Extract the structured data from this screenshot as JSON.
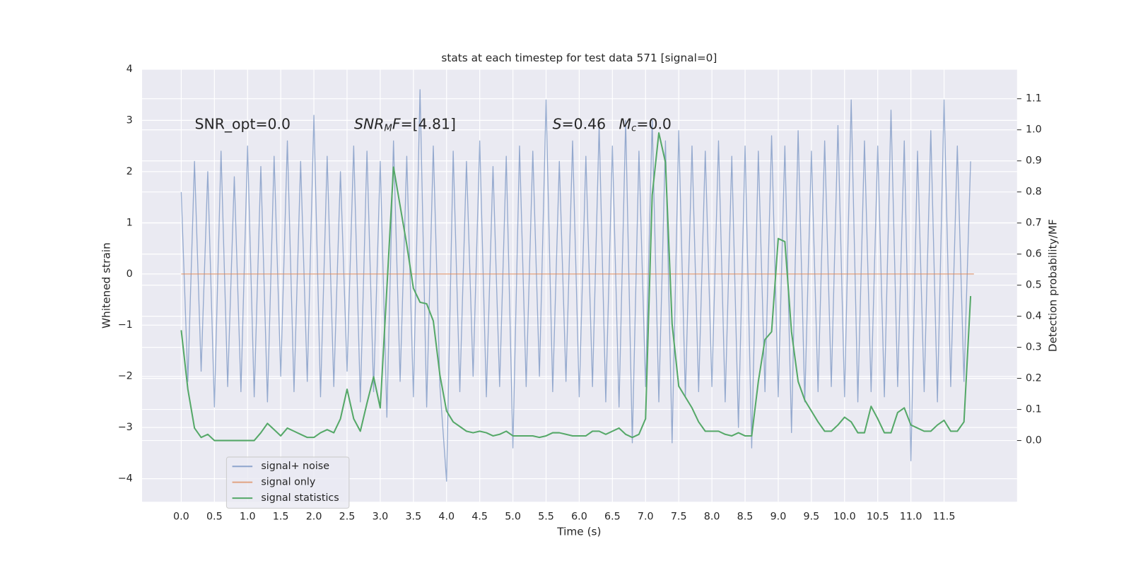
{
  "chart_data": {
    "type": "line",
    "title": "stats at each timestep for test data 571 [signal=0]",
    "x_label": "Time (s)",
    "y_label": "Whitened strain",
    "y2_label": "Detection probability/MF",
    "annotations": [
      [
        {
          "text": "SNR_opt=0.0"
        }
      ],
      [
        {
          "text": "SNR",
          "italic": true
        },
        {
          "text": "M",
          "italic": true,
          "sub": true
        },
        {
          "text": "F",
          "italic": true
        },
        {
          "text": "=[4.81]"
        }
      ],
      [
        {
          "text": "S",
          "italic": true
        },
        {
          "text": "=0.46"
        }
      ],
      [
        {
          "text": "M",
          "italic": true
        },
        {
          "text": "c",
          "italic": true,
          "sub": true
        },
        {
          "text": "=0.0"
        }
      ]
    ],
    "x": [
      0,
      0.1,
      0.2,
      0.3,
      0.4,
      0.5,
      0.6,
      0.7,
      0.8,
      0.9,
      1,
      1.1,
      1.2,
      1.3,
      1.4,
      1.5,
      1.6,
      1.7,
      1.8,
      1.9,
      2,
      2.1,
      2.2,
      2.3,
      2.4,
      2.5,
      2.6,
      2.7,
      2.8,
      2.9,
      3,
      3.1,
      3.2,
      3.3,
      3.4,
      3.5,
      3.6,
      3.7,
      3.8,
      3.9,
      4,
      4.1,
      4.2,
      4.3,
      4.4,
      4.5,
      4.6,
      4.7,
      4.8,
      4.9,
      5,
      5.1,
      5.2,
      5.3,
      5.4,
      5.5,
      5.6,
      5.7,
      5.8,
      5.9,
      6,
      6.1,
      6.2,
      6.3,
      6.4,
      6.5,
      6.6,
      6.7,
      6.8,
      6.9,
      7,
      7.1,
      7.2,
      7.3,
      7.4,
      7.5,
      7.6,
      7.7,
      7.8,
      7.9,
      8,
      8.1,
      8.2,
      8.3,
      8.4,
      8.5,
      8.6,
      8.7,
      8.8,
      8.9,
      9,
      9.1,
      9.2,
      9.3,
      9.4,
      9.5,
      9.6,
      9.7,
      9.8,
      9.9,
      10,
      10.1,
      10.2,
      10.3,
      10.4,
      10.5,
      10.6,
      10.7,
      10.8,
      10.9,
      11,
      11.1,
      11.2,
      11.3,
      11.4,
      11.5,
      11.6,
      11.7,
      11.8,
      11.9
    ],
    "series": [
      {
        "name": "signal+ noise",
        "color": "#4c72b0",
        "opacity": 0.55,
        "values": [
          1.6,
          -2.1,
          2.2,
          -1.9,
          2.0,
          -2.6,
          2.4,
          -2.2,
          1.9,
          -2.3,
          2.5,
          -2.4,
          2.1,
          -2.5,
          2.3,
          -2.0,
          2.6,
          -2.3,
          2.2,
          -2.1,
          3.1,
          -2.4,
          2.3,
          -2.2,
          2.0,
          -1.9,
          2.5,
          -2.5,
          2.4,
          -2.3,
          2.2,
          -2.8,
          2.6,
          -2.1,
          2.3,
          -2.4,
          3.6,
          -2.6,
          2.5,
          -2.2,
          -4.05,
          2.4,
          -2.3,
          2.2,
          -2.0,
          2.6,
          -2.4,
          2.1,
          -2.2,
          2.3,
          -3.4,
          2.5,
          -2.2,
          2.4,
          -2.0,
          3.4,
          -2.3,
          2.2,
          -2.1,
          2.6,
          -2.4,
          2.3,
          -2.2,
          2.9,
          -2.5,
          2.5,
          -2.6,
          3.0,
          -3.3,
          2.4,
          -2.2,
          3.0,
          -2.5,
          2.6,
          -3.3,
          2.8,
          -2.4,
          2.5,
          -2.3,
          2.4,
          -2.2,
          2.6,
          -2.5,
          2.3,
          -3.0,
          2.5,
          -3.4,
          2.4,
          -2.3,
          2.7,
          -2.4,
          2.5,
          -3.1,
          2.8,
          -2.5,
          2.4,
          -2.3,
          2.6,
          -2.2,
          2.9,
          -2.4,
          3.4,
          -2.5,
          2.6,
          -2.3,
          2.5,
          -2.4,
          3.2,
          -2.2,
          2.6,
          -3.65,
          2.4,
          -2.3,
          2.8,
          -2.5,
          3.4,
          -2.2,
          2.5,
          -2.1,
          2.2
        ]
      },
      {
        "name": "signal only",
        "color": "#dd8452",
        "opacity": 0.7,
        "x": [
          0,
          11.95
        ],
        "values": [
          0,
          0
        ]
      },
      {
        "name": "signal statistics",
        "color": "#55a868",
        "opacity": 1,
        "axis": "y2",
        "values": [
          0.355,
          0.165,
          0.04,
          0.01,
          0.02,
          0,
          0,
          0,
          0,
          0,
          0,
          0,
          0.025,
          0.055,
          0.035,
          0.015,
          0.04,
          0.03,
          0.02,
          0.01,
          0.01,
          0.025,
          0.035,
          0.025,
          0.07,
          0.165,
          0.07,
          0.03,
          0.12,
          0.205,
          0.105,
          0.49,
          0.88,
          0.755,
          0.63,
          0.49,
          0.445,
          0.44,
          0.385,
          0.21,
          0.095,
          0.06,
          0.045,
          0.03,
          0.025,
          0.03,
          0.025,
          0.015,
          0.02,
          0.03,
          0.015,
          0.015,
          0.015,
          0.015,
          0.01,
          0.015,
          0.025,
          0.025,
          0.02,
          0.015,
          0.015,
          0.015,
          0.03,
          0.03,
          0.02,
          0.03,
          0.04,
          0.02,
          0.01,
          0.02,
          0.07,
          0.79,
          0.99,
          0.895,
          0.375,
          0.175,
          0.14,
          0.105,
          0.06,
          0.03,
          0.03,
          0.03,
          0.02,
          0.015,
          0.025,
          0.015,
          0.015,
          0.19,
          0.325,
          0.35,
          0.65,
          0.64,
          0.35,
          0.19,
          0.13,
          0.095,
          0.06,
          0.03,
          0.03,
          0.05,
          0.075,
          0.06,
          0.025,
          0.025,
          0.11,
          0.07,
          0.025,
          0.025,
          0.09,
          0.105,
          0.05,
          0.04,
          0.03,
          0.03,
          0.05,
          0.065,
          0.03,
          0.03,
          0.06,
          0.465
        ]
      }
    ],
    "xlim": [
      -0.59,
      12.6
    ],
    "xticks": [
      {
        "value": 0,
        "label": "0.0"
      },
      {
        "value": 0.5,
        "label": "0.5"
      },
      {
        "value": 1,
        "label": "1.0"
      },
      {
        "value": 1.5,
        "label": "1.5"
      },
      {
        "value": 2,
        "label": "2.0"
      },
      {
        "value": 2.5,
        "label": "2.5"
      },
      {
        "value": 3,
        "label": "3.0"
      },
      {
        "value": 3.5,
        "label": "3.5"
      },
      {
        "value": 4,
        "label": "4.0"
      },
      {
        "value": 4.5,
        "label": "4.5"
      },
      {
        "value": 5,
        "label": "5.0"
      },
      {
        "value": 5.5,
        "label": "5.5"
      },
      {
        "value": 6,
        "label": "6.0"
      },
      {
        "value": 6.5,
        "label": "6.5"
      },
      {
        "value": 7,
        "label": "7.0"
      },
      {
        "value": 7.5,
        "label": "7.5"
      },
      {
        "value": 8,
        "label": "8.0"
      },
      {
        "value": 8.5,
        "label": "8.5"
      },
      {
        "value": 9,
        "label": "9.0"
      },
      {
        "value": 9.5,
        "label": "9.5"
      },
      {
        "value": 10,
        "label": "10.0"
      },
      {
        "value": 10.5,
        "label": "10.5"
      },
      {
        "value": 11,
        "label": "11.0"
      },
      {
        "value": 11.5,
        "label": "11.5"
      }
    ],
    "ylim": [
      -4.45,
      4
    ],
    "yticks": [
      {
        "value": -4,
        "label": "−4"
      },
      {
        "value": -3,
        "label": "−3"
      },
      {
        "value": -2,
        "label": "−2"
      },
      {
        "value": -1,
        "label": "−1"
      },
      0,
      1,
      2,
      3,
      4
    ],
    "y2lim": [
      -0.197,
      1.195
    ],
    "y2ticks": [
      {
        "value": 0,
        "label": "0.0"
      },
      {
        "value": 0.1,
        "label": "0.1"
      },
      {
        "value": 0.2,
        "label": "0.2"
      },
      {
        "value": 0.3,
        "label": "0.3"
      },
      {
        "value": 0.4,
        "label": "0.4"
      },
      {
        "value": 0.5,
        "label": "0.5"
      },
      {
        "value": 0.6,
        "label": "0.6"
      },
      {
        "value": 0.7,
        "label": "0.7"
      },
      {
        "value": 0.8,
        "label": "0.8"
      },
      {
        "value": 0.9,
        "label": "0.9"
      },
      {
        "value": 1,
        "label": "1.0"
      },
      {
        "value": 1.1,
        "label": "1.1"
      }
    ],
    "grid": true,
    "legend": "lower left"
  }
}
